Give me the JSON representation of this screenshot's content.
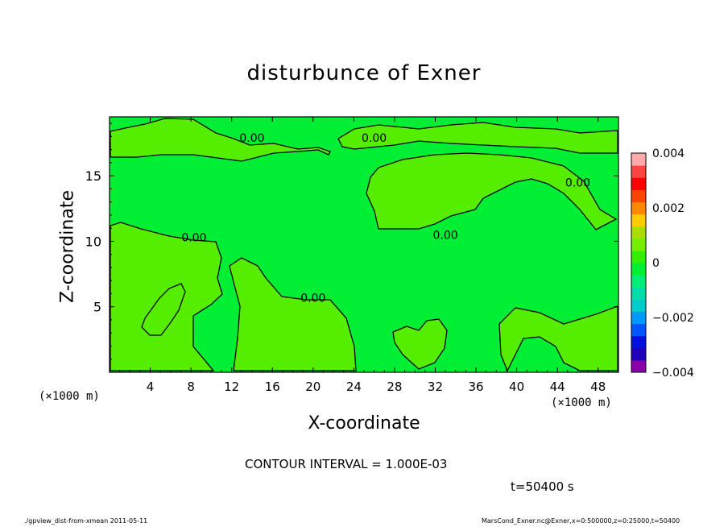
{
  "chart_data": {
    "type": "contour",
    "title": "disturbunce of Exner",
    "xlabel": "X-coordinate",
    "ylabel": "Z-coordinate",
    "x_unit": "(×1000 m)",
    "xlim": [
      0,
      50
    ],
    "ylim": [
      0,
      19.5
    ],
    "x_ticks": [
      4,
      8,
      12,
      16,
      20,
      24,
      28,
      32,
      36,
      40,
      44,
      48
    ],
    "y_ticks": [
      5,
      10,
      15
    ],
    "contour_label": "0.00",
    "contour_interval_text": "CONTOUR INTERVAL = 1.000E-03",
    "time_text": "t=50400 s",
    "field_color": "#00ee33",
    "positive_region_color": "#55ee00",
    "colorbar": {
      "min": -0.004,
      "max": 0.004,
      "tick_labels": [
        "0.004",
        "0.002",
        "0",
        "−0.002",
        "−0.004"
      ],
      "tick_values": [
        0.004,
        0.002,
        0,
        -0.002,
        -0.004
      ],
      "colors": [
        "#8800aa",
        "#2200bb",
        "#0011dd",
        "#0055ff",
        "#0099ff",
        "#00cccc",
        "#00ddaa",
        "#00ee77",
        "#00ee33",
        "#33ee00",
        "#77ee00",
        "#aadd00",
        "#ffcc00",
        "#ff8800",
        "#ff4400",
        "#ff0000",
        "#ff4444",
        "#ffaaaa"
      ]
    },
    "contour_label_positions_data": [
      {
        "x": 14,
        "z": 17.9
      },
      {
        "x": 26,
        "z": 17.9
      },
      {
        "x": 46,
        "z": 14.5
      },
      {
        "x": 8.3,
        "z": 10.3
      },
      {
        "x": 33,
        "z": 10.5
      },
      {
        "x": 20,
        "z": 5.7
      }
    ]
  },
  "footer": {
    "left": "./gpview_dist-from-xmean  2011-05-11",
    "right": "MarsCond_Exner.nc@Exner,x=0:500000,z=0:25000,t=50400"
  }
}
